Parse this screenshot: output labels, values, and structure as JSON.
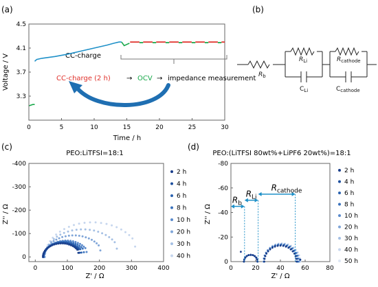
{
  "panels": {
    "a": "(a)",
    "b": "(b)",
    "c": "(c)",
    "d": "(d)"
  },
  "circuit": {
    "rb": "R",
    "rb_sub": "b",
    "rli": "R",
    "rli_sub": "Li",
    "cli": "C",
    "cli_sub": "Li",
    "rcat": "R",
    "rcat_sub": "cathode",
    "ccat": "C",
    "ccat_sub": "cathode"
  },
  "colors": {
    "blue_curve": "#1e90c8",
    "red_curve": "#e0302a",
    "green_curve": "#18a84a",
    "arrow": "#1f6fb2",
    "text_red": "#e0302a",
    "text_green": "#18a84a"
  },
  "chart_data": [
    {
      "type": "line",
      "panel": "a",
      "xlabel": "Time / h",
      "ylabel": "Voltage / V",
      "xlim": [
        0,
        30
      ],
      "ylim": [
        2.9,
        4.5
      ],
      "xticks": [
        0,
        5,
        10,
        15,
        20,
        25,
        30
      ],
      "yticks": [
        3.3,
        3.7,
        4.1,
        4.5
      ],
      "ytick_labels": [
        "3.3",
        "3.7",
        "4.1",
        "4.5"
      ],
      "grid": false,
      "series": [
        {
          "role": "ocv_start",
          "color": "#18a84a",
          "x": [
            0.05,
            0.3,
            0.6,
            0.9
          ],
          "y": [
            3.14,
            3.15,
            3.16,
            3.16
          ]
        },
        {
          "role": "cc_charge",
          "color": "#1e90c8",
          "x": [
            0.9,
            1.2,
            2,
            4,
            6,
            8,
            10,
            12,
            13,
            13.8,
            14.2
          ],
          "y": [
            3.88,
            3.91,
            3.93,
            3.96,
            4.0,
            4.05,
            4.1,
            4.15,
            4.18,
            4.2,
            4.2
          ]
        },
        {
          "role": "ocv_dip",
          "color": "#18a84a",
          "x": [
            14.2,
            14.6,
            15.0,
            15.4
          ],
          "y": [
            4.2,
            4.14,
            4.16,
            4.18
          ]
        }
      ],
      "pulses": {
        "start": 15.5,
        "end": 30,
        "period": 2.0,
        "charge_fraction": 0.72,
        "charge_color": "#e0302a",
        "ocv_color": "#18a84a",
        "y": 4.2
      },
      "annotations": {
        "cc_charge_label": "CC-charge",
        "seq_charge": "CC-charge (2 h)",
        "seq_arrow1": "→",
        "seq_ocv": "OCV",
        "seq_arrow2": "→",
        "seq_measure": "impedance measurement"
      }
    },
    {
      "type": "scatter",
      "panel": "c",
      "title": "PEO:LiTFSI=18:1",
      "xlabel": "Z' / Ω",
      "ylabel": "Z'' / Ω",
      "xlim": [
        -20,
        400
      ],
      "ylim": [
        20,
        -400
      ],
      "xticks": [
        0,
        100,
        200,
        300,
        400
      ],
      "yticks": [
        0,
        -100,
        -200,
        -300,
        -400
      ],
      "series": [
        {
          "name": "2 h",
          "color": "#1a3f8c",
          "center": 82,
          "radius": 58,
          "start": 18
        },
        {
          "name": "4 h",
          "color": "#1d4f9e",
          "center": 84,
          "radius": 60,
          "start": 18
        },
        {
          "name": "6 h",
          "color": "#2a62b0",
          "center": 88,
          "radius": 62,
          "start": 19
        },
        {
          "name": "8 h",
          "color": "#3a72bc",
          "center": 92,
          "radius": 66,
          "start": 19
        },
        {
          "name": "10 h",
          "color": "#5a8acc",
          "center": 97,
          "radius": 70,
          "start": 20
        },
        {
          "name": "20 h",
          "color": "#7fa5d8",
          "center": 120,
          "radius": 92,
          "start": 20
        },
        {
          "name": "30 h",
          "color": "#a5c0e4",
          "center": 148,
          "radius": 118,
          "start": 21
        },
        {
          "name": "40 h",
          "color": "#c6d6ee",
          "center": 178,
          "radius": 148,
          "start": 22
        }
      ]
    },
    {
      "type": "scatter",
      "panel": "d",
      "title": "PEO:(LiTFSI 80wt%+LiPF6 20wt%)=18:1",
      "xlabel": "Z' / Ω",
      "ylabel": "Z'' / Ω",
      "xlim": [
        0,
        80
      ],
      "ylim": [
        0,
        -80
      ],
      "xticks": [
        0,
        20,
        40,
        60,
        80
      ],
      "yticks": [
        0,
        -20,
        -40,
        -60,
        -80
      ],
      "series": [
        {
          "name": "2 h",
          "color": "#1a3f8c"
        },
        {
          "name": "4 h",
          "color": "#1d4f9e"
        },
        {
          "name": "6 h",
          "color": "#2a62b0"
        },
        {
          "name": "8 h",
          "color": "#3a72bc"
        },
        {
          "name": "10 h",
          "color": "#5a8acc"
        },
        {
          "name": "20 h",
          "color": "#7fa5d8"
        },
        {
          "name": "30 h",
          "color": "#a5c0e4"
        },
        {
          "name": "40 h",
          "color": "#c6d6ee"
        },
        {
          "name": "50 h",
          "color": "#dde6f4"
        }
      ],
      "arcs": [
        {
          "center": 16,
          "radius": 5.5,
          "start": 10.5
        },
        {
          "center": 40,
          "radius": 13,
          "start": 26
        }
      ],
      "tail_end": 56,
      "outlier": {
        "x": 8,
        "y": -8
      },
      "markers": {
        "rb": {
          "label": "R",
          "sub": "b",
          "from": 0,
          "to": 11,
          "y": -45,
          "line_top": -45
        },
        "rli": {
          "label": "R",
          "sub": "Li",
          "from": 11,
          "to": 22,
          "y": -50,
          "line_top": -50
        },
        "rcat": {
          "label": "R",
          "sub": "cathode",
          "from": 22,
          "to": 52,
          "y": -55,
          "line_top": -55
        }
      }
    }
  ]
}
